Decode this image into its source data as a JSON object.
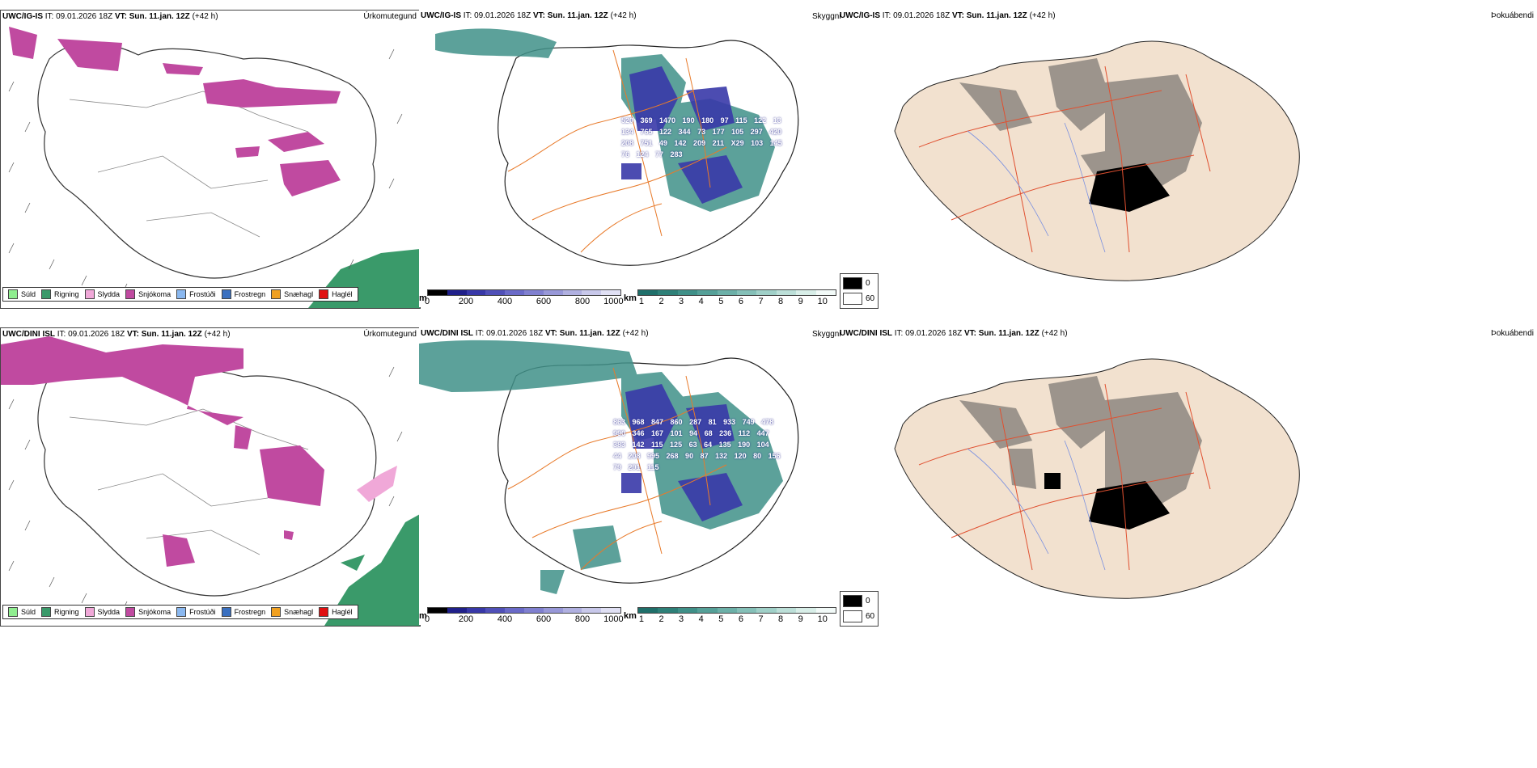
{
  "rows": [
    {
      "model": "UWC/IG-IS",
      "it_label": "IT:",
      "it_value": "09.01.2026 18Z",
      "vt_label": "VT:",
      "vt_value": "Sun. 11.jan. 12Z",
      "lead": "(+42 h)",
      "snow_labels": [
        "520",
        "369",
        "1470",
        "190",
        "180",
        "97",
        "115",
        "122",
        "13",
        "134",
        "765",
        "122",
        "344",
        "73",
        "177",
        "105",
        "297",
        "420",
        "208",
        "751",
        "49",
        "142",
        "209",
        "211",
        "X29",
        "103",
        "145",
        "76",
        "124",
        "77",
        "283"
      ],
      "snow_labels_list": "520 369 1470 190 180 97 115 122 13 134 765 122 344 73 177 105 297 420 208 751 49 142 209 211 X29 103 145 76 124 77 283"
    },
    {
      "model": "UWC/DINI ISL",
      "it_label": "IT:",
      "it_value": "09.01.2026 18Z",
      "vt_label": "VT:",
      "vt_value": "Sun. 11.jan. 12Z",
      "lead": "(+42 h)",
      "snow_labels_list": "863 968 847 860 287 81 933 749 478 990 346 167 101 94 68 236 112 447 383 142 115 125 63 64 135 190 104 44 208 995 268 90 87 132 120 80 156 79 291 115"
    }
  ],
  "panels": {
    "precip_type": {
      "title": "Úrkomutegund",
      "legend": [
        {
          "label": "Súld",
          "color": "#90ee90"
        },
        {
          "label": "Rigning",
          "color": "#3a9a6a"
        },
        {
          "label": "Slydda",
          "color": "#f0a8d8"
        },
        {
          "label": "Snjókoma",
          "color": "#c04aa0"
        },
        {
          "label": "Frostúði",
          "color": "#8ab8f0"
        },
        {
          "label": "Frostregn",
          "color": "#3a70c0"
        },
        {
          "label": "Snæhagl",
          "color": "#f0a020"
        },
        {
          "label": "Haglél",
          "color": "#e01010"
        }
      ]
    },
    "visibility": {
      "title": "Skyggni",
      "snow_unit": "m",
      "snow_ticks": [
        "0",
        "200",
        "400",
        "600",
        "800",
        "1000"
      ],
      "snow_colors": [
        "#000000",
        "#20208a",
        "#3838a8",
        "#5050b8",
        "#6a6ac8",
        "#8080d0",
        "#9898d8",
        "#b0b0e0",
        "#c8c8ea",
        "#e0e0f4"
      ],
      "vis_unit": "km",
      "vis_ticks": [
        "1",
        "2",
        "3",
        "4",
        "5",
        "6",
        "7",
        "8",
        "9",
        "10"
      ],
      "vis_colors": [
        "#1f6f6a",
        "#2e8078",
        "#3f9088",
        "#55a098",
        "#6cb0a8",
        "#85c0b8",
        "#a0d0c8",
        "#bcdfd8",
        "#d8eee8",
        "#f2faf8"
      ]
    },
    "fog": {
      "title": "Þokuábendi",
      "key": [
        "0",
        "60"
      ]
    }
  },
  "colors": {
    "snow_magenta": "#c04aa0",
    "rain_green": "#3a9a6a",
    "sleet_pink": "#f0a8d8",
    "road_orange": "#e87a2a",
    "land_beige": "#f2e1cf",
    "river_blue": "#7a90e0"
  }
}
